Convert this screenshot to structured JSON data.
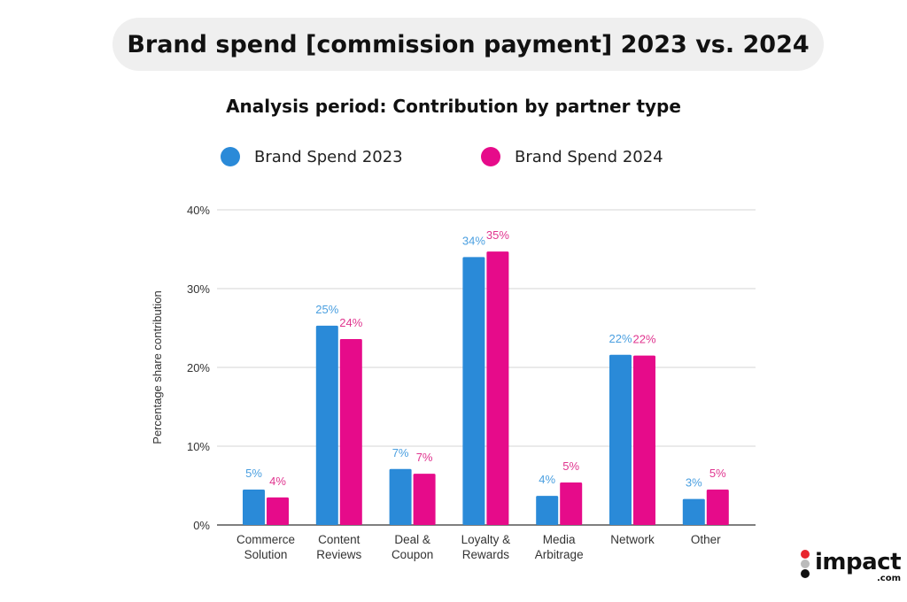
{
  "header": {
    "title": "Brand spend [commission payment] 2023 vs. 2024"
  },
  "logo": {
    "text": "impact",
    "suffix": ".com"
  },
  "chart_data": {
    "type": "bar",
    "title": "Analysis period: Contribution by partner type",
    "ylabel": "Percentage share contribution",
    "xlabel": "",
    "ylim": [
      0,
      40
    ],
    "yticks": [
      "0%",
      "10%",
      "20%",
      "30%",
      "40%"
    ],
    "grid": true,
    "legend": "top",
    "categories": [
      [
        "Commerce",
        "Solution"
      ],
      [
        "Content",
        "Reviews"
      ],
      [
        "Deal &",
        "Coupon"
      ],
      [
        "Loyalty &",
        "Rewards"
      ],
      [
        "Media",
        "Arbitrage"
      ],
      [
        "Network"
      ],
      [
        "Other"
      ]
    ],
    "series": [
      {
        "name": "Brand Spend 2023",
        "color": "#2a8ad8",
        "label_color": "#4a9fe0",
        "values": [
          4.5,
          25.3,
          7.1,
          34.0,
          3.7,
          21.6,
          3.3
        ],
        "labels": [
          "5%",
          "25%",
          "7%",
          "34%",
          "4%",
          "22%",
          "3%"
        ]
      },
      {
        "name": "Brand Spend 2024",
        "color": "#e60b8a",
        "label_color": "#e0358f",
        "values": [
          3.5,
          23.6,
          6.5,
          34.7,
          5.4,
          21.5,
          4.5
        ],
        "labels": [
          "4%",
          "24%",
          "7%",
          "35%",
          "5%",
          "22%",
          "5%"
        ]
      }
    ]
  }
}
